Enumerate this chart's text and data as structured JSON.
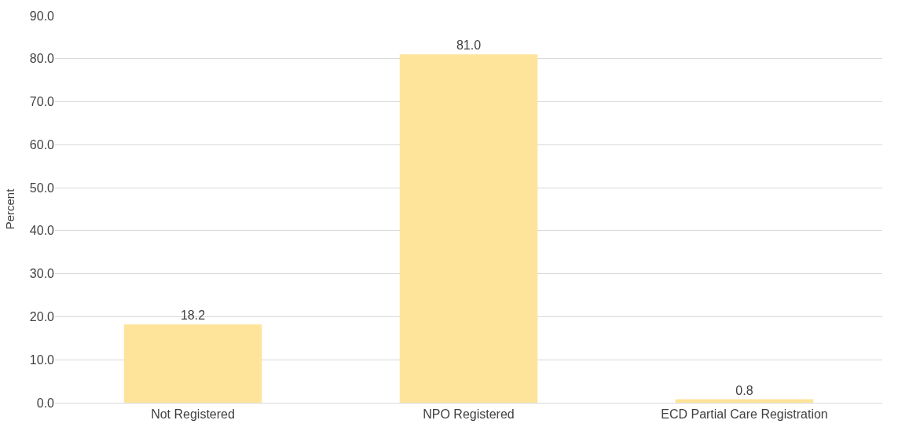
{
  "chart_data": {
    "type": "bar",
    "ylabel": "Percent",
    "categories": [
      "Not Registered",
      "NPO Registered",
      "ECD Partial Care Registration"
    ],
    "values": [
      18.2,
      81.0,
      0.8
    ],
    "color": "#fde49a",
    "value_labels": [
      "18.2",
      "81.0",
      "0.8"
    ],
    "grid": "y",
    "legend": false,
    "ylim": [
      0,
      90
    ],
    "yticks": [
      {
        "value": 0,
        "label": "0.0"
      },
      {
        "value": 10,
        "label": "10.0"
      },
      {
        "value": 20,
        "label": "20.0"
      },
      {
        "value": 30,
        "label": "30.0"
      },
      {
        "value": 40,
        "label": "40.0"
      },
      {
        "value": 50,
        "label": "50.0"
      },
      {
        "value": 60,
        "label": "60.0"
      },
      {
        "value": 70,
        "label": "70.0"
      },
      {
        "value": 80,
        "label": "80.0"
      },
      {
        "value": 90,
        "label": "90.0"
      }
    ]
  }
}
